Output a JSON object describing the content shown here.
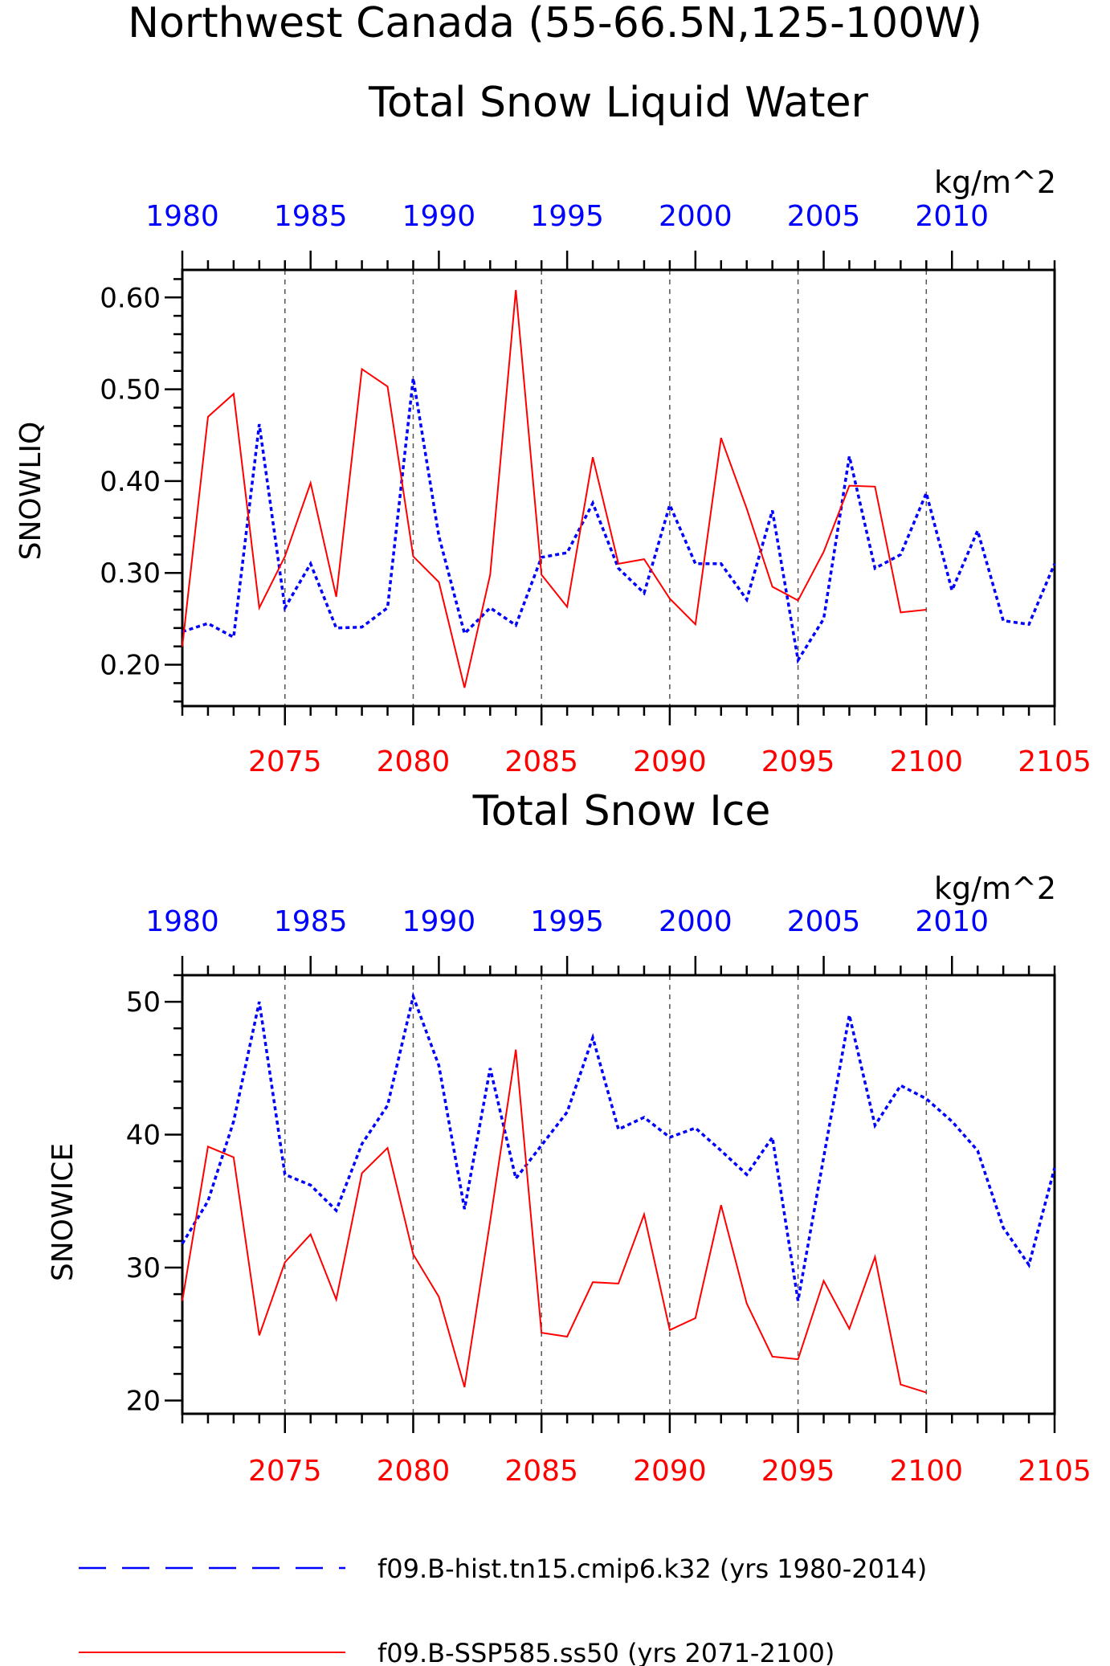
{
  "title": "Northwest Canada (55-66.5N,125-100W)",
  "colors": {
    "hist": "#0000ff",
    "ssp": "#ff0000",
    "axis": "#000000",
    "grid": "#555555"
  },
  "legend": {
    "hist_label": "f09.B-hist.tn15.cmip6.k32 (yrs 1980-2014)",
    "ssp_label": "f09.B-SSP585.ss50 (yrs 2071-2100)"
  },
  "chart_data": [
    {
      "type": "line",
      "title": "Total Snow Liquid Water",
      "units": "kg/m^2",
      "ylabel": "SNOWLIQ",
      "ylim": [
        0.155,
        0.63
      ],
      "yticks": [
        0.2,
        0.3,
        0.4,
        0.5,
        0.6
      ],
      "ytick_labels": [
        "0.20",
        "0.30",
        "0.40",
        "0.50",
        "0.60"
      ],
      "bottom_xlim": [
        2071,
        2105
      ],
      "bottom_xticks": [
        2075,
        2080,
        2085,
        2090,
        2095,
        2100,
        2105
      ],
      "top_xlim": [
        1980,
        2014
      ],
      "top_xticks": [
        1980,
        1985,
        1990,
        1995,
        2000,
        2005,
        2010
      ],
      "grid": "dashed vertical at 2075, 2080, 2085, 2090, 2095, 2100",
      "series": [
        {
          "name": "f09.B-hist.tn15.cmip6.k32 (yrs 1980-2014)",
          "style": "dashed",
          "x": [
            1980,
            1981,
            1982,
            1983,
            1984,
            1985,
            1986,
            1987,
            1988,
            1989,
            1990,
            1991,
            1992,
            1993,
            1994,
            1995,
            1996,
            1997,
            1998,
            1999,
            2000,
            2001,
            2002,
            2003,
            2004,
            2005,
            2006,
            2007,
            2008,
            2009,
            2010,
            2011,
            2012,
            2013,
            2014
          ],
          "values": [
            0.236,
            0.245,
            0.23,
            0.462,
            0.262,
            0.31,
            0.24,
            0.241,
            0.262,
            0.512,
            0.34,
            0.234,
            0.262,
            0.243,
            0.317,
            0.322,
            0.376,
            0.305,
            0.278,
            0.374,
            0.31,
            0.31,
            0.271,
            0.368,
            0.205,
            0.25,
            0.427,
            0.305,
            0.32,
            0.387,
            0.281,
            0.346,
            0.248,
            0.244,
            0.31
          ]
        },
        {
          "name": "f09.B-SSP585.ss50 (yrs 2071-2100)",
          "style": "solid",
          "x": [
            2071,
            2072,
            2073,
            2074,
            2075,
            2076,
            2077,
            2078,
            2079,
            2080,
            2081,
            2082,
            2083,
            2084,
            2085,
            2086,
            2087,
            2088,
            2089,
            2090,
            2091,
            2092,
            2093,
            2094,
            2095,
            2096,
            2097,
            2098,
            2099,
            2100
          ],
          "values": [
            0.22,
            0.47,
            0.495,
            0.262,
            0.318,
            0.398,
            0.274,
            0.522,
            0.503,
            0.318,
            0.29,
            0.175,
            0.298,
            0.608,
            0.298,
            0.263,
            0.426,
            0.31,
            0.315,
            0.272,
            0.244,
            0.447,
            0.37,
            0.285,
            0.27,
            0.323,
            0.395,
            0.394,
            0.257,
            0.26
          ]
        }
      ]
    },
    {
      "type": "line",
      "title": "Total Snow Ice",
      "units": "kg/m^2",
      "ylabel": "SNOWICE",
      "ylim": [
        19,
        52
      ],
      "yticks": [
        20,
        30,
        40,
        50
      ],
      "ytick_labels": [
        "20",
        "30",
        "40",
        "50"
      ],
      "bottom_xlim": [
        2071,
        2105
      ],
      "bottom_xticks": [
        2075,
        2080,
        2085,
        2090,
        2095,
        2100,
        2105
      ],
      "top_xlim": [
        1980,
        2014
      ],
      "top_xticks": [
        1980,
        1985,
        1990,
        1995,
        2000,
        2005,
        2010
      ],
      "grid": "dashed vertical at 2075, 2080, 2085, 2090, 2095, 2100",
      "series": [
        {
          "name": "f09.B-hist.tn15.cmip6.k32 (yrs 1980-2014)",
          "style": "dashed",
          "x": [
            1980,
            1981,
            1982,
            1983,
            1984,
            1985,
            1986,
            1987,
            1988,
            1989,
            1990,
            1991,
            1992,
            1993,
            1994,
            1995,
            1996,
            1997,
            1998,
            1999,
            2000,
            2001,
            2002,
            2003,
            2004,
            2005,
            2006,
            2007,
            2008,
            2009,
            2010,
            2011,
            2012,
            2013,
            2014
          ],
          "values": [
            31.8,
            35.0,
            41.0,
            50.0,
            37.0,
            36.2,
            34.3,
            39.3,
            42.2,
            50.4,
            45.2,
            34.4,
            45.0,
            36.7,
            39.2,
            41.7,
            47.3,
            40.4,
            41.3,
            39.8,
            40.5,
            38.8,
            37.0,
            39.8,
            27.5,
            38.3,
            49.0,
            40.7,
            43.7,
            42.7,
            41.0,
            38.8,
            33.0,
            30.2,
            37.5
          ]
        },
        {
          "name": "f09.B-SSP585.ss50 (yrs 2071-2100)",
          "style": "solid",
          "x": [
            2071,
            2072,
            2073,
            2074,
            2075,
            2076,
            2077,
            2078,
            2079,
            2080,
            2081,
            2082,
            2083,
            2084,
            2085,
            2086,
            2087,
            2088,
            2089,
            2090,
            2091,
            2092,
            2093,
            2094,
            2095,
            2096,
            2097,
            2098,
            2099,
            2100
          ],
          "values": [
            27.5,
            39.1,
            38.3,
            24.9,
            30.4,
            32.5,
            27.6,
            37.1,
            39.0,
            31.0,
            27.8,
            21.0,
            33.5,
            46.4,
            25.1,
            24.8,
            28.9,
            28.8,
            34.0,
            25.3,
            26.2,
            34.7,
            27.3,
            23.3,
            23.1,
            29.0,
            25.4,
            30.8,
            21.2,
            20.6
          ]
        }
      ]
    }
  ]
}
